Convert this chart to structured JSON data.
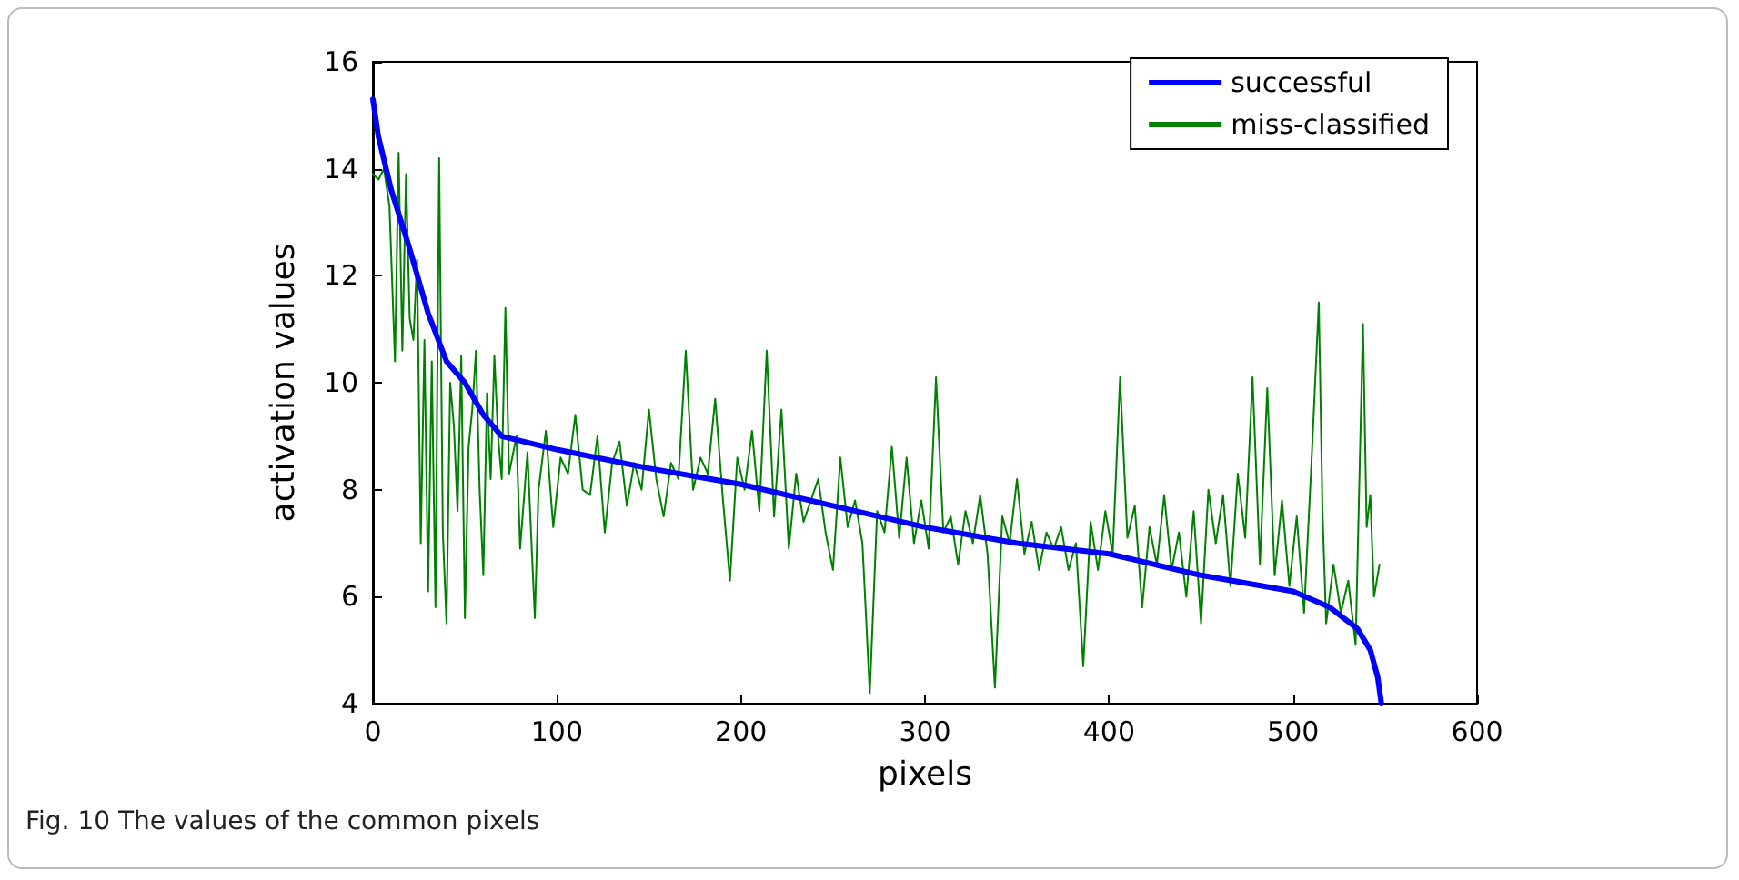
{
  "chart_data": {
    "type": "line",
    "xlabel": "pixels",
    "ylabel": "activation values",
    "xlim": [
      0,
      600
    ],
    "xticks": [
      0,
      100,
      200,
      300,
      400,
      500,
      600
    ],
    "ylim": [
      4,
      16
    ],
    "yticks": [
      4,
      6,
      8,
      10,
      12,
      14,
      16
    ],
    "grid": false,
    "legend": "top right",
    "marker": "none",
    "line_style": "solid",
    "annotations": [
      "Fig. 10  The values of the common pixels"
    ],
    "series": [
      {
        "name": "successful",
        "color": "#0000ff",
        "x": [
          0,
          3,
          10,
          20,
          30,
          40,
          50,
          60,
          70,
          100,
          150,
          200,
          250,
          300,
          350,
          400,
          450,
          500,
          520,
          535,
          542,
          546,
          548
        ],
        "values": [
          15.3,
          14.6,
          13.6,
          12.5,
          11.3,
          10.4,
          10.0,
          9.4,
          9.0,
          8.75,
          8.4,
          8.1,
          7.7,
          7.3,
          7.0,
          6.8,
          6.4,
          6.1,
          5.8,
          5.4,
          5.0,
          4.5,
          4.0
        ]
      },
      {
        "name": "miss-classified",
        "color": "#008000",
        "x": [
          0,
          3,
          6,
          9,
          12,
          14,
          16,
          18,
          20,
          22,
          24,
          26,
          28,
          30,
          32,
          34,
          36,
          38,
          40,
          42,
          44,
          46,
          48,
          50,
          52,
          54,
          56,
          58,
          60,
          62,
          64,
          66,
          68,
          70,
          72,
          74,
          78,
          80,
          84,
          88,
          90,
          94,
          98,
          102,
          106,
          110,
          114,
          118,
          122,
          126,
          130,
          134,
          138,
          142,
          146,
          150,
          154,
          158,
          162,
          166,
          170,
          174,
          178,
          182,
          186,
          190,
          194,
          198,
          202,
          206,
          210,
          214,
          218,
          222,
          226,
          230,
          234,
          238,
          242,
          246,
          250,
          254,
          258,
          262,
          266,
          270,
          274,
          278,
          282,
          286,
          290,
          294,
          298,
          302,
          306,
          310,
          314,
          318,
          322,
          326,
          330,
          334,
          338,
          342,
          346,
          350,
          354,
          358,
          362,
          366,
          370,
          374,
          378,
          382,
          386,
          390,
          394,
          398,
          402,
          406,
          410,
          414,
          418,
          422,
          426,
          430,
          434,
          438,
          442,
          446,
          450,
          454,
          458,
          462,
          466,
          470,
          474,
          478,
          482,
          486,
          490,
          494,
          498,
          502,
          506,
          510,
          514,
          516,
          518,
          522,
          526,
          530,
          534,
          538,
          540,
          542,
          544,
          547
        ],
        "values": [
          13.9,
          13.8,
          14.0,
          13.3,
          10.4,
          14.3,
          10.6,
          13.9,
          11.2,
          10.8,
          12.3,
          7.0,
          10.8,
          6.1,
          10.4,
          5.8,
          14.2,
          7.2,
          5.5,
          10.0,
          9.2,
          7.6,
          10.5,
          5.6,
          8.8,
          9.5,
          10.6,
          8.0,
          6.4,
          9.8,
          8.2,
          10.5,
          9.0,
          8.2,
          11.4,
          8.3,
          9.0,
          6.9,
          8.7,
          5.6,
          8.0,
          9.1,
          7.3,
          8.6,
          8.3,
          9.4,
          8.0,
          7.9,
          9.0,
          7.2,
          8.5,
          8.9,
          7.7,
          8.5,
          8.0,
          9.5,
          8.2,
          7.5,
          8.5,
          8.2,
          10.6,
          8.0,
          8.6,
          8.3,
          9.7,
          7.9,
          6.3,
          8.6,
          8.0,
          9.1,
          7.6,
          10.6,
          7.5,
          9.5,
          6.9,
          8.3,
          7.4,
          7.8,
          8.2,
          7.2,
          6.5,
          8.6,
          7.3,
          7.8,
          7.0,
          4.2,
          7.6,
          7.2,
          8.8,
          7.1,
          8.6,
          7.0,
          7.8,
          6.9,
          10.1,
          7.2,
          7.5,
          6.6,
          7.6,
          7.0,
          7.9,
          6.8,
          4.3,
          7.5,
          7.0,
          8.2,
          6.8,
          7.4,
          6.5,
          7.2,
          6.9,
          7.3,
          6.5,
          7.0,
          4.7,
          7.4,
          6.5,
          7.6,
          6.8,
          10.1,
          7.1,
          7.7,
          5.8,
          7.3,
          6.6,
          7.9,
          6.5,
          7.2,
          6.0,
          7.6,
          5.5,
          8.0,
          7.0,
          7.9,
          6.2,
          8.3,
          7.1,
          10.1,
          6.6,
          9.9,
          6.4,
          7.8,
          6.2,
          7.5,
          5.7,
          8.5,
          11.5,
          7.6,
          5.5,
          6.6,
          5.7,
          6.3,
          5.1,
          11.1,
          7.3,
          7.9,
          6.0,
          6.6
        ]
      }
    ]
  }
}
